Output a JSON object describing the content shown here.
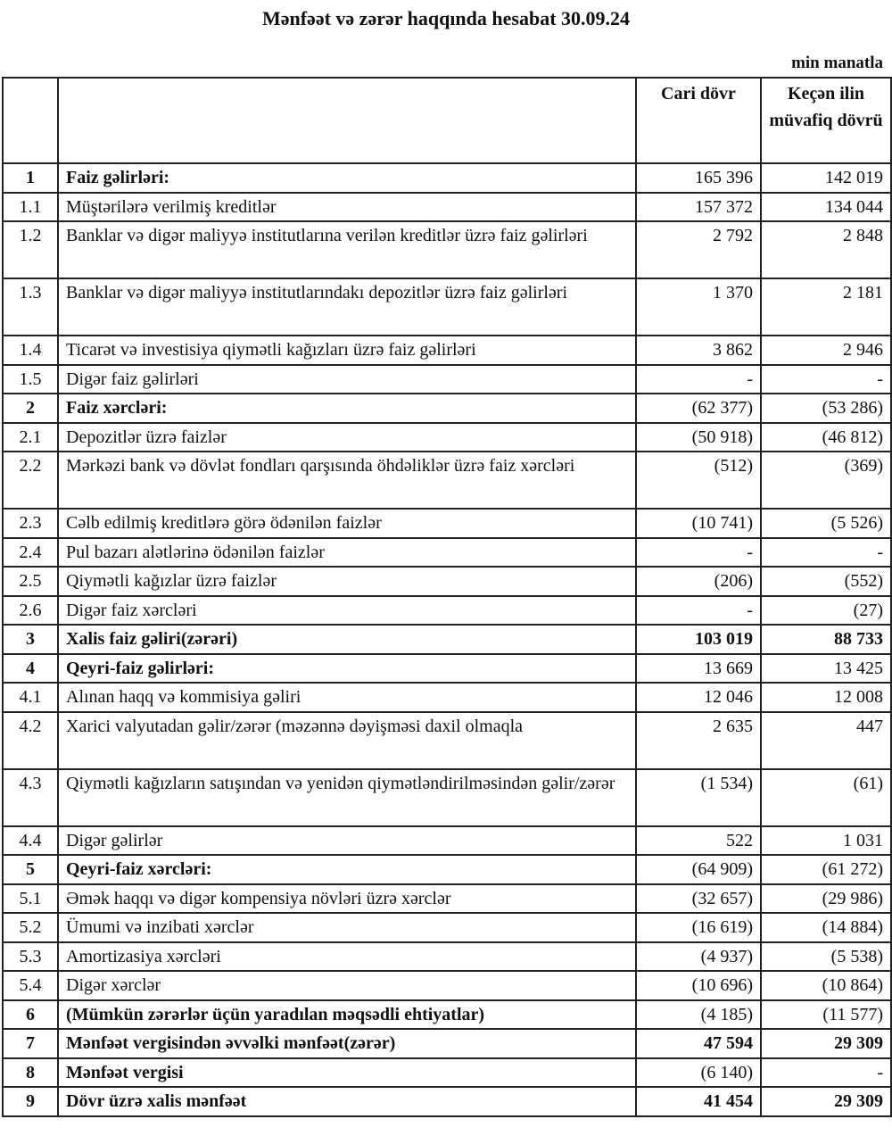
{
  "title": "Mənfəət və zərər haqqında hesabat 30.09.24",
  "unit": "min manatla",
  "columns": {
    "no": "",
    "item": "",
    "current": "Cari dövr",
    "previous": "Keçən ilin müvafiq dövrü"
  },
  "rows": [
    {
      "no": "1",
      "item": "Faiz gəlirləri:",
      "current": "165 396",
      "previous": "142 019",
      "bold": true
    },
    {
      "no": "1.1",
      "item": "Müştərilərə verilmiş kreditlər",
      "current": "157 372",
      "previous": "134 044"
    },
    {
      "no": "1.2",
      "item": "Banklar və digər maliyyə institutlarına verilən kreditlər üzrə faiz gəlirləri",
      "current": "2 792",
      "previous": "2 848",
      "double": true
    },
    {
      "no": "1.3",
      "item": "Banklar və digər maliyyə institutlarındakı depozitlər üzrə faiz gəlirləri",
      "current": "1 370",
      "previous": "2 181",
      "double": true
    },
    {
      "no": "1.4",
      "item": "Ticarət və investisiya qiymətli kağızları üzrə faiz gəlirləri",
      "current": "3 862",
      "previous": "2 946"
    },
    {
      "no": "1.5",
      "item": "Digər faiz gəlirləri",
      "current": "-",
      "previous": "-"
    },
    {
      "no": "2",
      "item": "Faiz xərcləri:",
      "current": "(62 377)",
      "previous": "(53 286)",
      "bold": true
    },
    {
      "no": "2.1",
      "item": "Depozitlər üzrə faizlər",
      "current": "(50 918)",
      "previous": "(46 812)"
    },
    {
      "no": "2.2",
      "item": "Mərkəzi bank və dövlət fondları qarşısında öhdəliklər üzrə faiz xərcləri",
      "current": "(512)",
      "previous": "(369)",
      "double": true
    },
    {
      "no": "2.3",
      "item": "Cəlb edilmiş kreditlərə görə ödənilən faizlər",
      "current": "(10 741)",
      "previous": "(5 526)"
    },
    {
      "no": "2.4",
      "item": "Pul bazarı alətlərinə ödənilən faizlər",
      "current": "-",
      "previous": "-"
    },
    {
      "no": "2.5",
      "item": "Qiymətli kağızlar üzrə faizlər",
      "current": "(206)",
      "previous": "(552)"
    },
    {
      "no": "2.6",
      "item": "Digər faiz xərcləri",
      "current": "-",
      "previous": "(27)"
    },
    {
      "no": "3",
      "item": "Xalis faiz gəliri(zərəri)",
      "current": "103 019",
      "previous": "88 733",
      "bold": true,
      "boldValues": true
    },
    {
      "no": "4",
      "item": "Qeyri-faiz gəlirləri:",
      "current": "13 669",
      "previous": "13 425",
      "bold": true
    },
    {
      "no": "4.1",
      "item": "Alınan haqq və kommisiya gəliri",
      "current": "12 046",
      "previous": "12 008"
    },
    {
      "no": "4.2",
      "item": "Xarici valyutadan gəlir/zərər (məzənnə dəyişməsi daxil olmaqla",
      "current": "2 635",
      "previous": "447",
      "double": true
    },
    {
      "no": "4.3",
      "item": "Qiymətli kağızların satışından və yenidən qiymətləndirilməsindən gəlir/zərər",
      "current": "(1 534)",
      "previous": "(61)",
      "double": true
    },
    {
      "no": "4.4",
      "item": "Digər gəlirlər",
      "current": "522",
      "previous": "1 031"
    },
    {
      "no": "5",
      "item": "Qeyri-faiz xərcləri:",
      "current": "(64 909)",
      "previous": "(61 272)",
      "bold": true
    },
    {
      "no": "5.1",
      "item": "Əmək haqqı və digər kompensiya növləri üzrə xərclər",
      "current": "(32 657)",
      "previous": "(29 986)"
    },
    {
      "no": "5.2",
      "item": "Ümumi və inzibati xərclər",
      "current": "(16 619)",
      "previous": "(14 884)"
    },
    {
      "no": "5.3",
      "item": "Amortizasiya xərcləri",
      "current": "(4 937)",
      "previous": "(5 538)"
    },
    {
      "no": "5.4",
      "item": "Digər xərclər",
      "current": "(10 696)",
      "previous": "(10 864)"
    },
    {
      "no": "6",
      "item": "(Mümkün zərərlər üçün yaradılan məqsədli ehtiyatlar)",
      "current": "(4 185)",
      "previous": "(11 577)",
      "bold": true
    },
    {
      "no": "7",
      "item": "Mənfəət vergisindən əvvəlki mənfəət(zərər)",
      "current": "47 594",
      "previous": "29 309",
      "bold": true,
      "boldValues": true
    },
    {
      "no": "8",
      "item": "Mənfəət vergisi",
      "current": "(6 140)",
      "previous": "-",
      "bold": true
    },
    {
      "no": "9",
      "item": "Dövr üzrə xalis mənfəət",
      "current": "41 454",
      "previous": "29 309",
      "bold": true,
      "boldValues": true
    }
  ]
}
